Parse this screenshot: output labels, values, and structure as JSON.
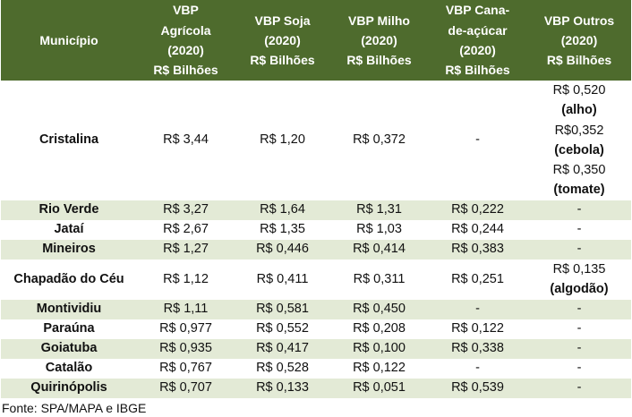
{
  "headers": {
    "municipio": "Município",
    "agricola": [
      "VBP",
      "Agrícola",
      "(2020)",
      "R$ Bilhões"
    ],
    "soja": [
      "VBP Soja",
      "(2020)",
      "R$ Bilhões"
    ],
    "milho": [
      "VBP Milho",
      "(2020)",
      "R$ Bilhões"
    ],
    "cana": [
      "VBP Cana-",
      "de-açúcar",
      "(2020)",
      "R$ Bilhões"
    ],
    "outros": [
      "VBP Outros",
      "(2020)",
      "R$ Bilhões"
    ]
  },
  "rows": [
    {
      "municipio": "Cristalina",
      "agricola": "R$ 3,44",
      "soja": "R$ 1,20",
      "milho": "R$ 0,372",
      "cana": "-",
      "outros": [
        [
          "R$ 0,520",
          false
        ],
        [
          "(alho)",
          true
        ],
        [
          "R$0,352",
          false
        ],
        [
          "(cebola)",
          true
        ],
        [
          "R$ 0,350",
          false
        ],
        [
          "(tomate)",
          true
        ]
      ]
    },
    {
      "municipio": "Rio Verde",
      "agricola": "R$ 3,27",
      "soja": "R$ 1,64",
      "milho": "R$ 1,31",
      "cana": "R$ 0,222",
      "outros": "-"
    },
    {
      "municipio": "Jataí",
      "agricola": "R$ 2,67",
      "soja": "R$ 1,35",
      "milho": "R$ 1,03",
      "cana": "R$ 0,244",
      "outros": "-"
    },
    {
      "municipio": "Mineiros",
      "agricola": "R$ 1,27",
      "soja": "R$ 0,446",
      "milho": "R$ 0,414",
      "cana": "R$ 0,383",
      "outros": "-"
    },
    {
      "municipio": "Chapadão do Céu",
      "agricola": "R$ 1,12",
      "soja": "R$ 0,411",
      "milho": "R$ 0,311",
      "cana": "R$ 0,251",
      "outros": [
        [
          "R$ 0,135",
          false
        ],
        [
          "(algodão)",
          true
        ]
      ]
    },
    {
      "municipio": "Montividiu",
      "agricola": "R$ 1,11",
      "soja": "R$ 0,581",
      "milho": "R$ 0,450",
      "cana": "-",
      "outros": "-"
    },
    {
      "municipio": "Paraúna",
      "agricola": "R$ 0,977",
      "soja": "R$ 0,552",
      "milho": "R$ 0,208",
      "cana": "R$ 0,122",
      "outros": "-"
    },
    {
      "municipio": "Goiatuba",
      "agricola": "R$ 0,935",
      "soja": "R$ 0,417",
      "milho": "R$ 0,100",
      "cana": "R$ 0,338",
      "outros": "-"
    },
    {
      "municipio": "Catalão",
      "agricola": "R$ 0,767",
      "soja": "R$ 0,528",
      "milho": "R$ 0,122",
      "cana": "-",
      "outros": "-"
    },
    {
      "municipio": "Quirinópolis",
      "agricola": "R$ 0,707",
      "soja": "R$ 0,133",
      "milho": "R$ 0,051",
      "cana": "R$ 0,539",
      "outros": "-"
    }
  ],
  "fonte": "Fonte: SPA/MAPA e IBGE",
  "colors": {
    "header_bg": "#4e6b2d",
    "row_shade": "#e3ead6"
  }
}
